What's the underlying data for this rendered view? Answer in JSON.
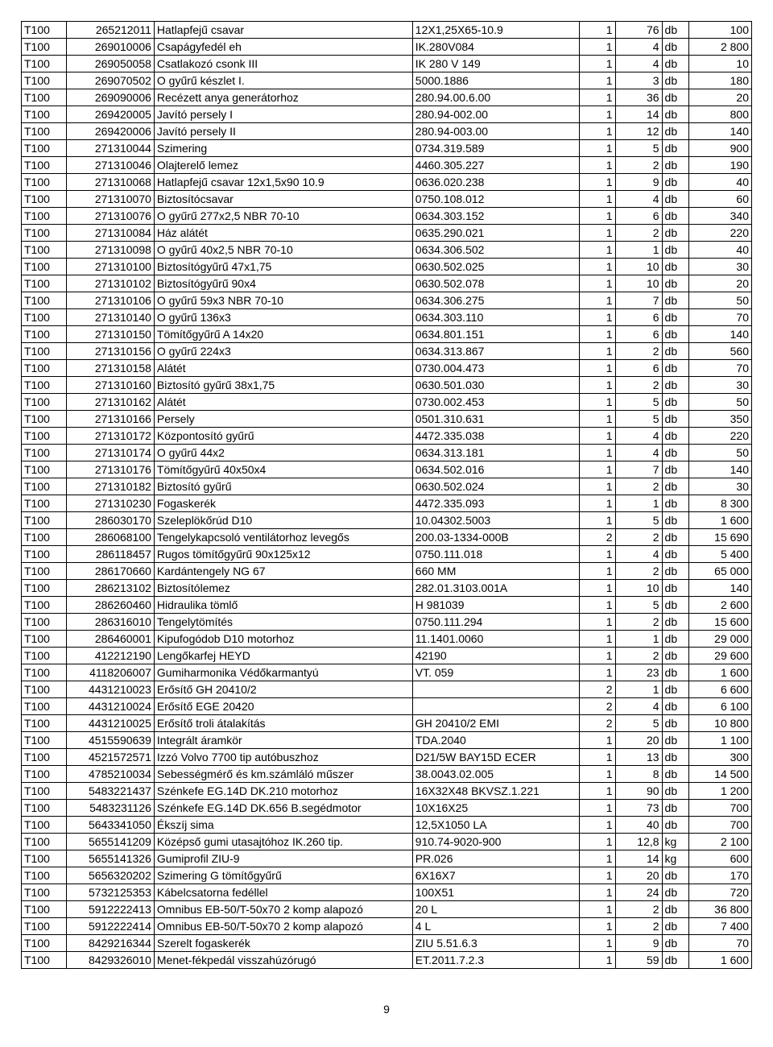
{
  "page_number": "9",
  "rows": [
    [
      "T100",
      "265212011",
      "Hatlapfejű csavar",
      "12X1,25X65-10.9",
      "1",
      "76",
      "db",
      "100"
    ],
    [
      "T100",
      "269010006",
      "Csapágyfedél eh",
      "IK.280V084",
      "1",
      "4",
      "db",
      "2 800"
    ],
    [
      "T100",
      "269050058",
      "Csatlakozó csonk III",
      "IK 280 V 149",
      "1",
      "4",
      "db",
      "10"
    ],
    [
      "T100",
      "269070502",
      "O gyűrű készlet I.",
      "5000.1886",
      "1",
      "3",
      "db",
      "180"
    ],
    [
      "T100",
      "269090006",
      "Recézett anya generátorhoz",
      "280.94.00.6.00",
      "1",
      "36",
      "db",
      "20"
    ],
    [
      "T100",
      "269420005",
      "Javító persely I",
      "280.94-002.00",
      "1",
      "14",
      "db",
      "800"
    ],
    [
      "T100",
      "269420006",
      "Javító persely II",
      "280.94-003.00",
      "1",
      "12",
      "db",
      "140"
    ],
    [
      "T100",
      "271310044",
      "Szimering",
      "0734.319.589",
      "1",
      "5",
      "db",
      "900"
    ],
    [
      "T100",
      "271310046",
      "Olajterelő lemez",
      "4460.305.227",
      "1",
      "2",
      "db",
      "190"
    ],
    [
      "T100",
      "271310068",
      "Hatlapfejű csavar 12x1,5x90 10.9",
      "0636.020.238",
      "1",
      "9",
      "db",
      "40"
    ],
    [
      "T100",
      "271310070",
      "Biztosítócsavar",
      "0750.108.012",
      "1",
      "4",
      "db",
      "60"
    ],
    [
      "T100",
      "271310076",
      "O gyűrű 277x2,5 NBR 70-10",
      "0634.303.152",
      "1",
      "6",
      "db",
      "340"
    ],
    [
      "T100",
      "271310084",
      "Ház alátét",
      "0635.290.021",
      "1",
      "2",
      "db",
      "220"
    ],
    [
      "T100",
      "271310098",
      "O gyűrű 40x2,5 NBR 70-10",
      "0634.306.502",
      "1",
      "1",
      "db",
      "40"
    ],
    [
      "T100",
      "271310100",
      "Biztosítógyűrű 47x1,75",
      "0630.502.025",
      "1",
      "10",
      "db",
      "30"
    ],
    [
      "T100",
      "271310102",
      "Biztosítógyűrű 90x4",
      "0630.502.078",
      "1",
      "10",
      "db",
      "20"
    ],
    [
      "T100",
      "271310106",
      "O gyűrű 59x3 NBR 70-10",
      "0634.306.275",
      "1",
      "7",
      "db",
      "50"
    ],
    [
      "T100",
      "271310140",
      "O gyűrű 136x3",
      "0634.303.110",
      "1",
      "6",
      "db",
      "70"
    ],
    [
      "T100",
      "271310150",
      "Tömítőgyűrű A 14x20",
      "0634.801.151",
      "1",
      "6",
      "db",
      "140"
    ],
    [
      "T100",
      "271310156",
      "O gyűrű 224x3",
      "0634.313.867",
      "1",
      "2",
      "db",
      "560"
    ],
    [
      "T100",
      "271310158",
      "Alátét",
      "0730.004.473",
      "1",
      "6",
      "db",
      "70"
    ],
    [
      "T100",
      "271310160",
      "Biztosító gyűrű 38x1,75",
      "0630.501.030",
      "1",
      "2",
      "db",
      "30"
    ],
    [
      "T100",
      "271310162",
      "Alátét",
      "0730.002.453",
      "1",
      "5",
      "db",
      "50"
    ],
    [
      "T100",
      "271310166",
      "Persely",
      "0501.310.631",
      "1",
      "5",
      "db",
      "350"
    ],
    [
      "T100",
      "271310172",
      "Központosító gyűrű",
      "4472.335.038",
      "1",
      "4",
      "db",
      "220"
    ],
    [
      "T100",
      "271310174",
      "O gyűrű 44x2",
      "0634.313.181",
      "1",
      "4",
      "db",
      "50"
    ],
    [
      "T100",
      "271310176",
      "Tömítőgyűrű 40x50x4",
      "0634.502.016",
      "1",
      "7",
      "db",
      "140"
    ],
    [
      "T100",
      "271310182",
      "Biztosító gyűrű",
      "0630.502.024",
      "1",
      "2",
      "db",
      "30"
    ],
    [
      "T100",
      "271310230",
      "Fogaskerék",
      "4472.335.093",
      "1",
      "1",
      "db",
      "8 300"
    ],
    [
      "T100",
      "286030170",
      "Szeleplökőrúd D10",
      "10.04302.5003",
      "1",
      "5",
      "db",
      "1 600"
    ],
    [
      "T100",
      "286068100",
      "Tengelykapcsoló ventilátorhoz levegős",
      "200.03-1334-000B",
      "2",
      "2",
      "db",
      "15 690"
    ],
    [
      "T100",
      "286118457",
      "Rugos tömítőgyűrű 90x125x12",
      "0750.111.018",
      "1",
      "4",
      "db",
      "5 400"
    ],
    [
      "T100",
      "286170660",
      "Kardántengely NG 67",
      "660 MM",
      "1",
      "2",
      "db",
      "65 000"
    ],
    [
      "T100",
      "286213102",
      "Biztosítólemez",
      "282.01.3103.001A",
      "1",
      "10",
      "db",
      "140"
    ],
    [
      "T100",
      "286260460",
      "Hidraulika tömlő",
      "H 981039",
      "1",
      "5",
      "db",
      "2 600"
    ],
    [
      "T100",
      "286316010",
      "Tengelytömítés",
      "0750.111.294",
      "1",
      "2",
      "db",
      "15 600"
    ],
    [
      "T100",
      "286460001",
      "Kipufogódob D10 motorhoz",
      "11.1401.0060",
      "1",
      "1",
      "db",
      "29 000"
    ],
    [
      "T100",
      "412212190",
      "Lengőkarfej HEYD",
      "42190",
      "1",
      "2",
      "db",
      "29 600"
    ],
    [
      "T100",
      "4118206007",
      "Gumiharmonika Védőkarmantyú",
      "VT. 059",
      "1",
      "23",
      "db",
      "1 600"
    ],
    [
      "T100",
      "4431210023",
      "Erősítő GH 20410/2",
      "",
      "2",
      "1",
      "db",
      "6 600"
    ],
    [
      "T100",
      "4431210024",
      "Erősítő EGE 20420",
      "",
      "2",
      "4",
      "db",
      "6 100"
    ],
    [
      "T100",
      "4431210025",
      "Erősítő troli átalakítás",
      "GH 20410/2   EMI",
      "2",
      "5",
      "db",
      "10 800"
    ],
    [
      "T100",
      "4515590639",
      "Integrált áramkör",
      "TDA.2040",
      "1",
      "20",
      "db",
      "1 100"
    ],
    [
      "T100",
      "4521572571",
      "Izzó Volvo 7700 tip autóbuszhoz",
      "D21/5W BAY15D ECER",
      "1",
      "13",
      "db",
      "300"
    ],
    [
      "T100",
      "4785210034",
      "Sebességmérő és km.számláló műszer",
      "38.0043.02.005",
      "1",
      "8",
      "db",
      "14 500"
    ],
    [
      "T100",
      "5483221437",
      "Szénkefe EG.14D DK.210 motorhoz",
      "16X32X48 BKVSZ.1.221",
      "1",
      "90",
      "db",
      "1 200"
    ],
    [
      "T100",
      "5483231126",
      "Szénkefe EG.14D DK.656 B.segédmotor",
      "10X16X25",
      "1",
      "73",
      "db",
      "700"
    ],
    [
      "T100",
      "5643341050",
      "Ékszíj sima",
      "12,5X1050 LA",
      "1",
      "40",
      "db",
      "700"
    ],
    [
      "T100",
      "5655141209",
      "Középső gumi utasajtóhoz IK.260 tip.",
      "910.74-9020-900",
      "1",
      "12,8",
      "kg",
      "2 100"
    ],
    [
      "T100",
      "5655141326",
      "Gumiprofil ZIU-9",
      "PR.026",
      "1",
      "14",
      "kg",
      "600"
    ],
    [
      "T100",
      "5656320202",
      "Szimering G tömítőgyűrű",
      "6X16X7",
      "1",
      "20",
      "db",
      "170"
    ],
    [
      "T100",
      "5732125353",
      "Kábelcsatorna fedéllel",
      "100X51",
      "1",
      "24",
      "db",
      "720"
    ],
    [
      "T100",
      "5912222413",
      "Omnibus EB-50/T-50x70 2 komp alapozó",
      "20 L",
      "1",
      "2",
      "db",
      "36 800"
    ],
    [
      "T100",
      "5912222414",
      "Omnibus EB-50/T-50x70 2 komp alapozó",
      "4 L",
      "1",
      "2",
      "db",
      "7 400"
    ],
    [
      "T100",
      "8429216344",
      "Szerelt fogaskerék",
      "ZIU 5.51.6.3",
      "1",
      "9",
      "db",
      "70"
    ],
    [
      "T100",
      "8429326010",
      "Menet-fékpedál visszahúzórugó",
      "ET.2011.7.2.3",
      "1",
      "59",
      "db",
      "1 600"
    ]
  ]
}
